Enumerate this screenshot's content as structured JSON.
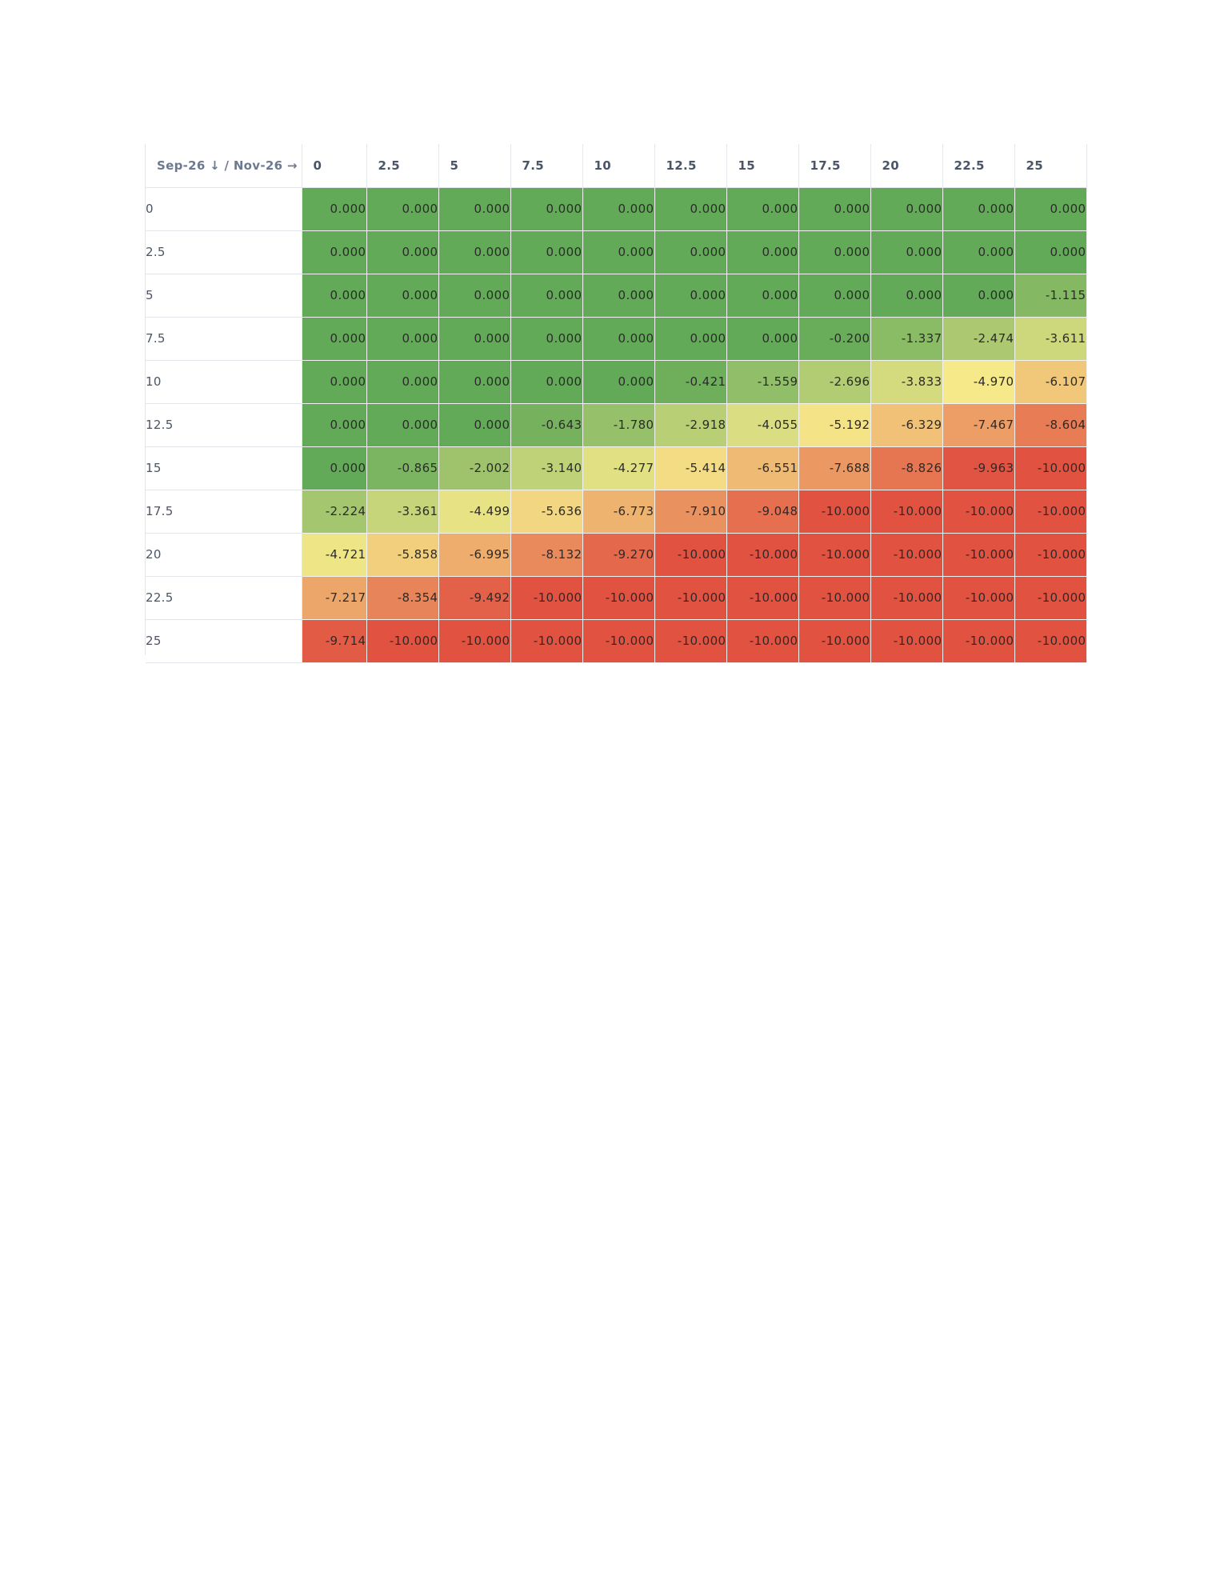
{
  "chart_data": {
    "type": "heatmap",
    "corner_label": "Sep-26 ↓ / Nov-26 →",
    "row_axis": "Sep-26",
    "col_axis": "Nov-26",
    "columns": [
      "0",
      "2.5",
      "5",
      "7.5",
      "10",
      "12.5",
      "15",
      "17.5",
      "20",
      "22.5",
      "25"
    ],
    "rows": [
      "0",
      "2.5",
      "5",
      "7.5",
      "10",
      "12.5",
      "15",
      "17.5",
      "20",
      "22.5",
      "25"
    ],
    "values": [
      [
        0.0,
        0.0,
        0.0,
        0.0,
        0.0,
        0.0,
        0.0,
        0.0,
        0.0,
        0.0,
        0.0
      ],
      [
        0.0,
        0.0,
        0.0,
        0.0,
        0.0,
        0.0,
        0.0,
        0.0,
        0.0,
        0.0,
        0.0
      ],
      [
        0.0,
        0.0,
        0.0,
        0.0,
        0.0,
        0.0,
        0.0,
        0.0,
        0.0,
        0.0,
        -1.115
      ],
      [
        0.0,
        0.0,
        0.0,
        0.0,
        0.0,
        0.0,
        0.0,
        -0.2,
        -1.337,
        -2.474,
        -3.611
      ],
      [
        0.0,
        0.0,
        0.0,
        0.0,
        0.0,
        -0.421,
        -1.559,
        -2.696,
        -3.833,
        -4.97,
        -6.107
      ],
      [
        0.0,
        0.0,
        0.0,
        -0.643,
        -1.78,
        -2.918,
        -4.055,
        -5.192,
        -6.329,
        -7.467,
        -8.604
      ],
      [
        0.0,
        -0.865,
        -2.002,
        -3.14,
        -4.277,
        -5.414,
        -6.551,
        -7.688,
        -8.826,
        -9.963,
        -10.0
      ],
      [
        -2.224,
        -3.361,
        -4.499,
        -5.636,
        -6.773,
        -7.91,
        -9.048,
        -10.0,
        -10.0,
        -10.0,
        -10.0
      ],
      [
        -4.721,
        -5.858,
        -6.995,
        -8.132,
        -9.27,
        -10.0,
        -10.0,
        -10.0,
        -10.0,
        -10.0,
        -10.0
      ],
      [
        -7.217,
        -8.354,
        -9.492,
        -10.0,
        -10.0,
        -10.0,
        -10.0,
        -10.0,
        -10.0,
        -10.0,
        -10.0
      ],
      [
        -9.714,
        -10.0,
        -10.0,
        -10.0,
        -10.0,
        -10.0,
        -10.0,
        -10.0,
        -10.0,
        -10.0,
        -10.0
      ]
    ],
    "value_range": [
      -10,
      0
    ],
    "color_scale": [
      "#63aa58",
      "#f6e98a",
      "#e15241"
    ],
    "decimals": 3
  }
}
